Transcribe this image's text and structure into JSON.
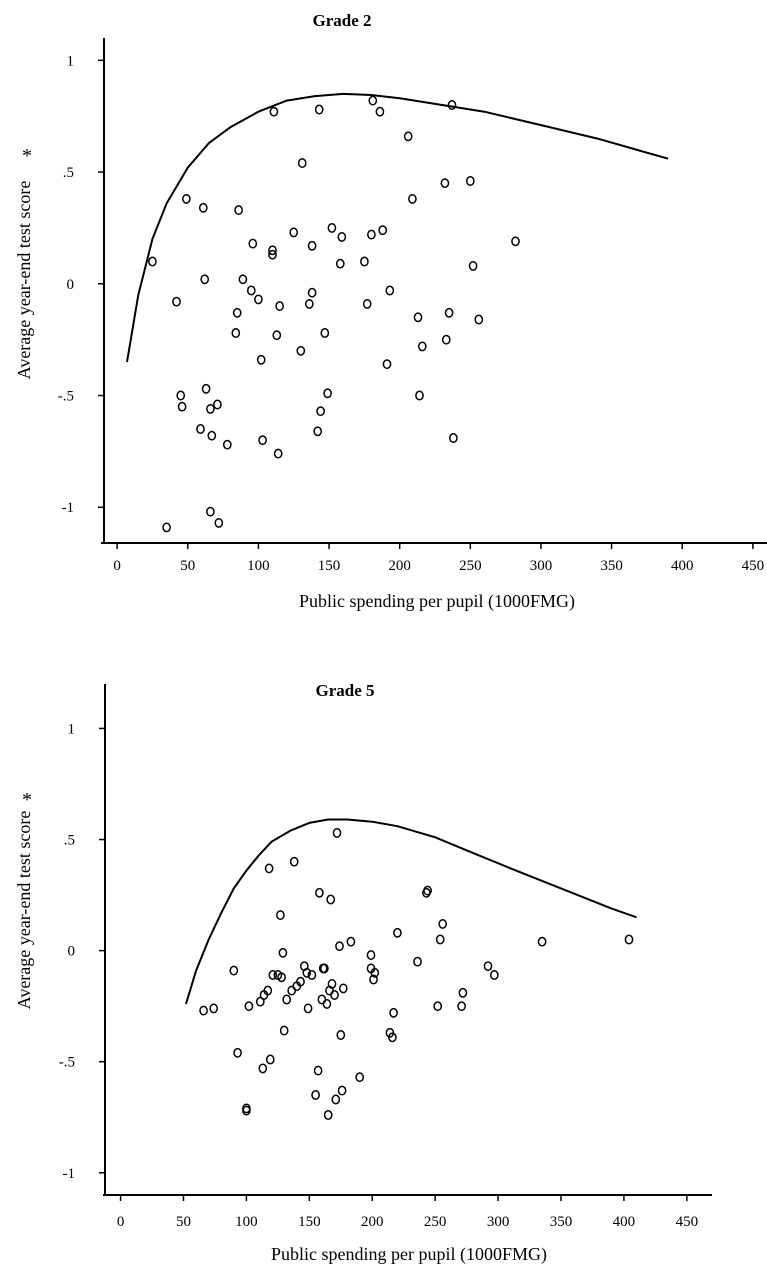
{
  "chart_data": [
    {
      "type": "scatter",
      "title": "Grade 2",
      "xlabel": "Public spending per pupil (1000FMG)",
      "ylabel": "Average year-end test score",
      "ylabel_marker": "*",
      "x_ticks": [
        "0",
        "50",
        "100",
        "150",
        "200",
        "250",
        "300",
        "350",
        "400",
        "450"
      ],
      "y_ticks": [
        "1",
        ".5",
        "0",
        "-.5",
        "-1"
      ],
      "xlim": [
        -10,
        460
      ],
      "ylim": [
        -1.16,
        1.1
      ],
      "points": [
        {
          "x": 25,
          "y": 0.1
        },
        {
          "x": 35,
          "y": -1.09
        },
        {
          "x": 42,
          "y": -0.08
        },
        {
          "x": 45,
          "y": -0.5
        },
        {
          "x": 46,
          "y": -0.55
        },
        {
          "x": 49,
          "y": 0.38
        },
        {
          "x": 59,
          "y": -0.65
        },
        {
          "x": 61,
          "y": 0.34
        },
        {
          "x": 62,
          "y": 0.02
        },
        {
          "x": 63,
          "y": -0.47
        },
        {
          "x": 66,
          "y": -0.56
        },
        {
          "x": 66,
          "y": -1.02
        },
        {
          "x": 67,
          "y": -0.68
        },
        {
          "x": 71,
          "y": -0.54
        },
        {
          "x": 72,
          "y": -1.07
        },
        {
          "x": 78,
          "y": -0.72
        },
        {
          "x": 84,
          "y": -0.22
        },
        {
          "x": 85,
          "y": -0.13
        },
        {
          "x": 86,
          "y": 0.33
        },
        {
          "x": 89,
          "y": 0.02
        },
        {
          "x": 95,
          "y": -0.03
        },
        {
          "x": 96,
          "y": 0.18
        },
        {
          "x": 100,
          "y": -0.07
        },
        {
          "x": 102,
          "y": -0.34
        },
        {
          "x": 103,
          "y": -0.7
        },
        {
          "x": 110,
          "y": 0.15
        },
        {
          "x": 110,
          "y": 0.13
        },
        {
          "x": 111,
          "y": 0.77
        },
        {
          "x": 113,
          "y": -0.23
        },
        {
          "x": 114,
          "y": -0.76
        },
        {
          "x": 115,
          "y": -0.1
        },
        {
          "x": 125,
          "y": 0.23
        },
        {
          "x": 130,
          "y": -0.3
        },
        {
          "x": 131,
          "y": 0.54
        },
        {
          "x": 136,
          "y": -0.09
        },
        {
          "x": 138,
          "y": 0.17
        },
        {
          "x": 138,
          "y": -0.04
        },
        {
          "x": 142,
          "y": -0.66
        },
        {
          "x": 143,
          "y": 0.78
        },
        {
          "x": 144,
          "y": -0.57
        },
        {
          "x": 147,
          "y": -0.22
        },
        {
          "x": 149,
          "y": -0.49
        },
        {
          "x": 152,
          "y": 0.25
        },
        {
          "x": 158,
          "y": 0.09
        },
        {
          "x": 159,
          "y": 0.21
        },
        {
          "x": 175,
          "y": 0.1
        },
        {
          "x": 177,
          "y": -0.09
        },
        {
          "x": 180,
          "y": 0.22
        },
        {
          "x": 181,
          "y": 0.82
        },
        {
          "x": 186,
          "y": 0.77
        },
        {
          "x": 188,
          "y": 0.24
        },
        {
          "x": 191,
          "y": -0.36
        },
        {
          "x": 193,
          "y": -0.03
        },
        {
          "x": 206,
          "y": 0.66
        },
        {
          "x": 209,
          "y": 0.38
        },
        {
          "x": 213,
          "y": -0.15
        },
        {
          "x": 214,
          "y": -0.5
        },
        {
          "x": 216,
          "y": -0.28
        },
        {
          "x": 232,
          "y": 0.45
        },
        {
          "x": 233,
          "y": -0.25
        },
        {
          "x": 235,
          "y": -0.13
        },
        {
          "x": 237,
          "y": 0.8
        },
        {
          "x": 238,
          "y": -0.69
        },
        {
          "x": 250,
          "y": 0.46
        },
        {
          "x": 252,
          "y": 0.08
        },
        {
          "x": 256,
          "y": -0.16
        },
        {
          "x": 282,
          "y": 0.19
        }
      ],
      "fit_curve": {
        "x": [
          7,
          15,
          25,
          35,
          50,
          65,
          80,
          100,
          120,
          140,
          160,
          180,
          200,
          230,
          260,
          300,
          340,
          390
        ],
        "y": [
          -0.35,
          -0.05,
          0.2,
          0.36,
          0.52,
          0.63,
          0.7,
          0.77,
          0.82,
          0.84,
          0.85,
          0.845,
          0.83,
          0.8,
          0.77,
          0.71,
          0.65,
          0.56
        ]
      }
    },
    {
      "type": "scatter",
      "title": "Grade 5",
      "xlabel": "Public spending per pupil (1000FMG)",
      "ylabel": "Average year-end test score",
      "ylabel_marker": "*",
      "x_ticks": [
        "0",
        "50",
        "100",
        "150",
        "200",
        "250",
        "300",
        "350",
        "400",
        "450"
      ],
      "y_ticks": [
        "1",
        ".5",
        "0",
        "-.5",
        "-1"
      ],
      "xlim": [
        -10,
        470
      ],
      "ylim": [
        -1.1,
        1.2
      ],
      "points": [
        {
          "x": 66,
          "y": -0.27
        },
        {
          "x": 74,
          "y": -0.26
        },
        {
          "x": 90,
          "y": -0.09
        },
        {
          "x": 93,
          "y": -0.46
        },
        {
          "x": 100,
          "y": -0.71
        },
        {
          "x": 100,
          "y": -0.72
        },
        {
          "x": 102,
          "y": -0.25
        },
        {
          "x": 111,
          "y": -0.23
        },
        {
          "x": 113,
          "y": -0.53
        },
        {
          "x": 114,
          "y": -0.2
        },
        {
          "x": 117,
          "y": -0.18
        },
        {
          "x": 118,
          "y": 0.37
        },
        {
          "x": 119,
          "y": -0.49
        },
        {
          "x": 121,
          "y": -0.11
        },
        {
          "x": 125,
          "y": -0.11
        },
        {
          "x": 127,
          "y": 0.16
        },
        {
          "x": 128,
          "y": -0.12
        },
        {
          "x": 129,
          "y": -0.01
        },
        {
          "x": 130,
          "y": -0.36
        },
        {
          "x": 132,
          "y": -0.22
        },
        {
          "x": 136,
          "y": -0.18
        },
        {
          "x": 138,
          "y": 0.4
        },
        {
          "x": 140,
          "y": -0.16
        },
        {
          "x": 143,
          "y": -0.14
        },
        {
          "x": 146,
          "y": -0.07
        },
        {
          "x": 148,
          "y": -0.1
        },
        {
          "x": 149,
          "y": -0.26
        },
        {
          "x": 152,
          "y": -0.11
        },
        {
          "x": 155,
          "y": -0.65
        },
        {
          "x": 157,
          "y": -0.54
        },
        {
          "x": 158,
          "y": 0.26
        },
        {
          "x": 160,
          "y": -0.22
        },
        {
          "x": 161,
          "y": -0.08
        },
        {
          "x": 162,
          "y": -0.08
        },
        {
          "x": 164,
          "y": -0.24
        },
        {
          "x": 165,
          "y": -0.74
        },
        {
          "x": 166,
          "y": -0.18
        },
        {
          "x": 167,
          "y": 0.23
        },
        {
          "x": 168,
          "y": -0.15
        },
        {
          "x": 170,
          "y": -0.2
        },
        {
          "x": 171,
          "y": -0.67
        },
        {
          "x": 172,
          "y": 0.53
        },
        {
          "x": 174,
          "y": 0.02
        },
        {
          "x": 175,
          "y": -0.38
        },
        {
          "x": 176,
          "y": -0.63
        },
        {
          "x": 177,
          "y": -0.17
        },
        {
          "x": 183,
          "y": 0.04
        },
        {
          "x": 190,
          "y": -0.57
        },
        {
          "x": 199,
          "y": -0.02
        },
        {
          "x": 199,
          "y": -0.08
        },
        {
          "x": 201,
          "y": -0.13
        },
        {
          "x": 202,
          "y": -0.1
        },
        {
          "x": 214,
          "y": -0.37
        },
        {
          "x": 216,
          "y": -0.39
        },
        {
          "x": 217,
          "y": -0.28
        },
        {
          "x": 220,
          "y": 0.08
        },
        {
          "x": 236,
          "y": -0.05
        },
        {
          "x": 243,
          "y": 0.26
        },
        {
          "x": 244,
          "y": 0.27
        },
        {
          "x": 252,
          "y": -0.25
        },
        {
          "x": 254,
          "y": 0.05
        },
        {
          "x": 256,
          "y": 0.12
        },
        {
          "x": 271,
          "y": -0.25
        },
        {
          "x": 272,
          "y": -0.19
        },
        {
          "x": 292,
          "y": -0.07
        },
        {
          "x": 297,
          "y": -0.11
        },
        {
          "x": 335,
          "y": 0.04
        },
        {
          "x": 404,
          "y": 0.05
        }
      ],
      "fit_curve": {
        "x": [
          52,
          60,
          70,
          80,
          90,
          100,
          110,
          120,
          135,
          150,
          165,
          180,
          200,
          220,
          250,
          280,
          310,
          350,
          390,
          410
        ],
        "y": [
          -0.24,
          -0.09,
          0.05,
          0.17,
          0.28,
          0.36,
          0.43,
          0.49,
          0.54,
          0.575,
          0.59,
          0.59,
          0.58,
          0.56,
          0.51,
          0.44,
          0.37,
          0.28,
          0.19,
          0.15
        ]
      }
    }
  ]
}
